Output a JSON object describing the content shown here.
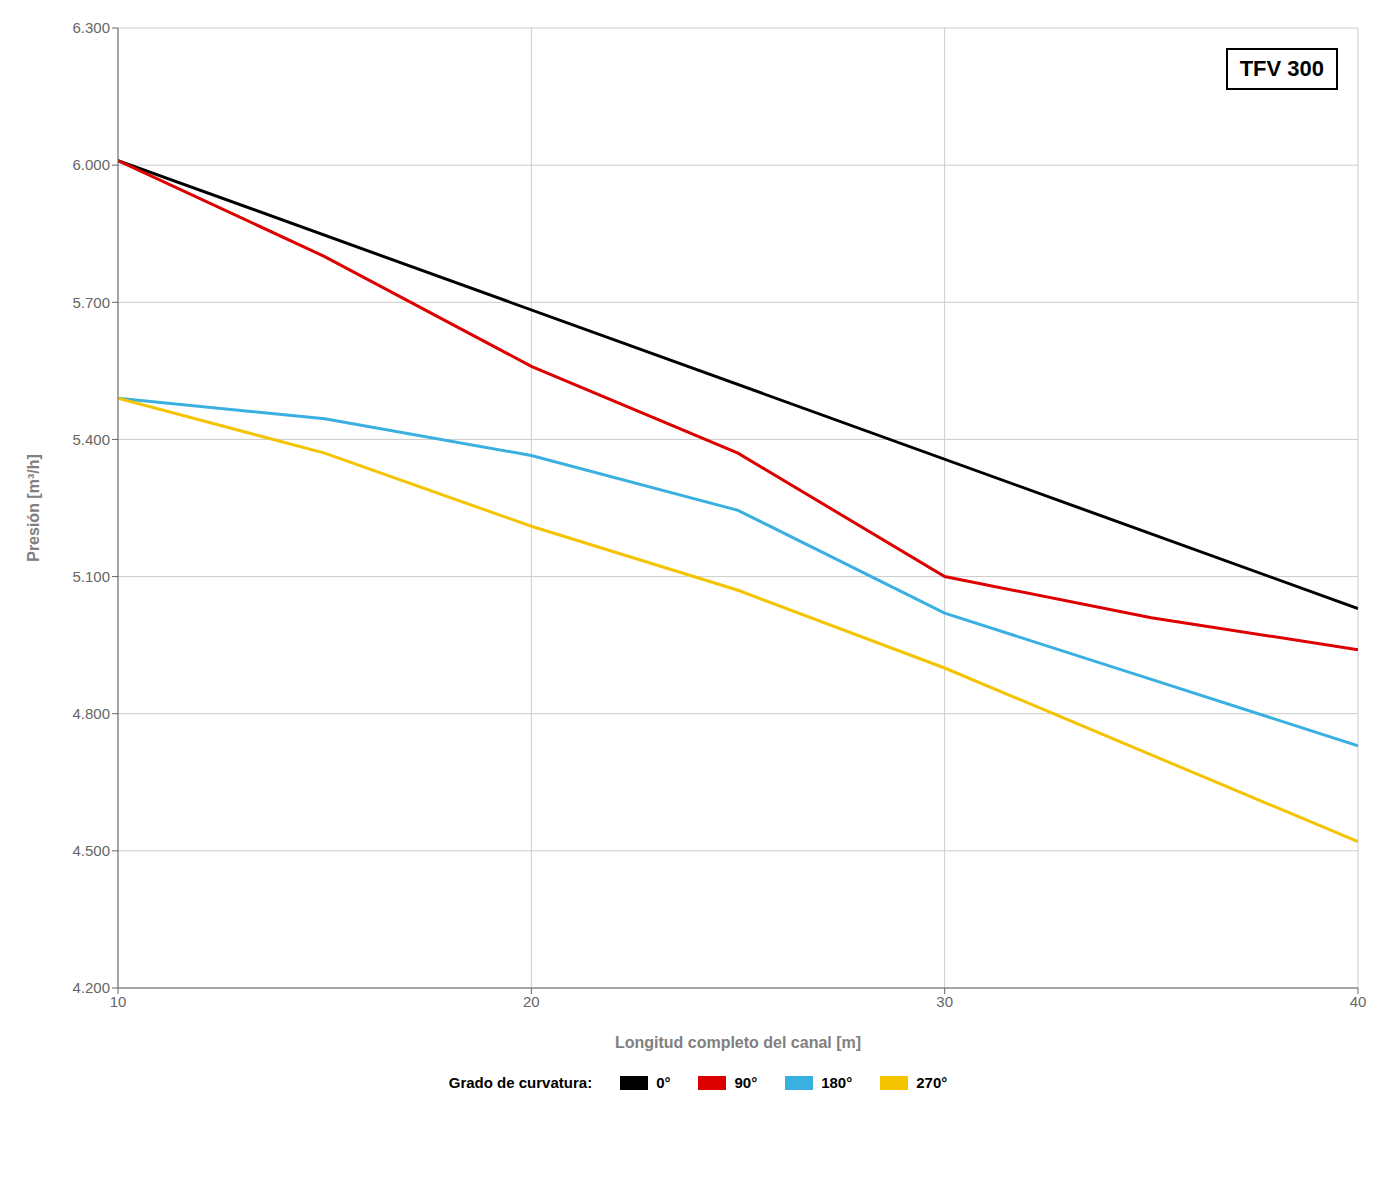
{
  "chart_data": {
    "type": "line",
    "xlabel": "Longitud completo del canal [m]",
    "ylabel": "Presión [m³/h]",
    "annotation": "TFV 300",
    "legend_title": "Grado de curvatura:",
    "legend": "bottom",
    "grid": true,
    "xlim": [
      10,
      40
    ],
    "ylim": [
      4.2,
      6.3
    ],
    "xticks": [
      10,
      20,
      30,
      40
    ],
    "yticks": [
      {
        "value": 4.2,
        "label": "4.200"
      },
      {
        "value": 4.5,
        "label": "4.500"
      },
      {
        "value": 4.8,
        "label": "4.800"
      },
      {
        "value": 5.1,
        "label": "5.100"
      },
      {
        "value": 5.4,
        "label": "5.400"
      },
      {
        "value": 5.7,
        "label": "5.700"
      },
      {
        "value": 6.0,
        "label": "6.000"
      },
      {
        "value": 6.3,
        "label": "6.300"
      }
    ],
    "series": [
      {
        "name": "0°",
        "color": "#000000",
        "x": [
          10,
          40
        ],
        "values": [
          6.01,
          5.03
        ]
      },
      {
        "name": "90°",
        "color": "#dd0000",
        "x": [
          10,
          15,
          20,
          25,
          30,
          35,
          40
        ],
        "values": [
          6.01,
          5.8,
          5.56,
          5.37,
          5.1,
          5.01,
          4.94
        ]
      },
      {
        "name": "180°",
        "color": "#3ab0e0",
        "x": [
          10,
          15,
          20,
          25,
          30,
          35,
          40
        ],
        "values": [
          5.49,
          5.445,
          5.365,
          5.245,
          5.02,
          4.875,
          4.73
        ]
      },
      {
        "name": "270°",
        "color": "#f5c400",
        "x": [
          10,
          15,
          20,
          25,
          30,
          35,
          40
        ],
        "values": [
          5.49,
          5.37,
          5.21,
          5.07,
          4.9,
          4.71,
          4.52
        ]
      }
    ]
  }
}
